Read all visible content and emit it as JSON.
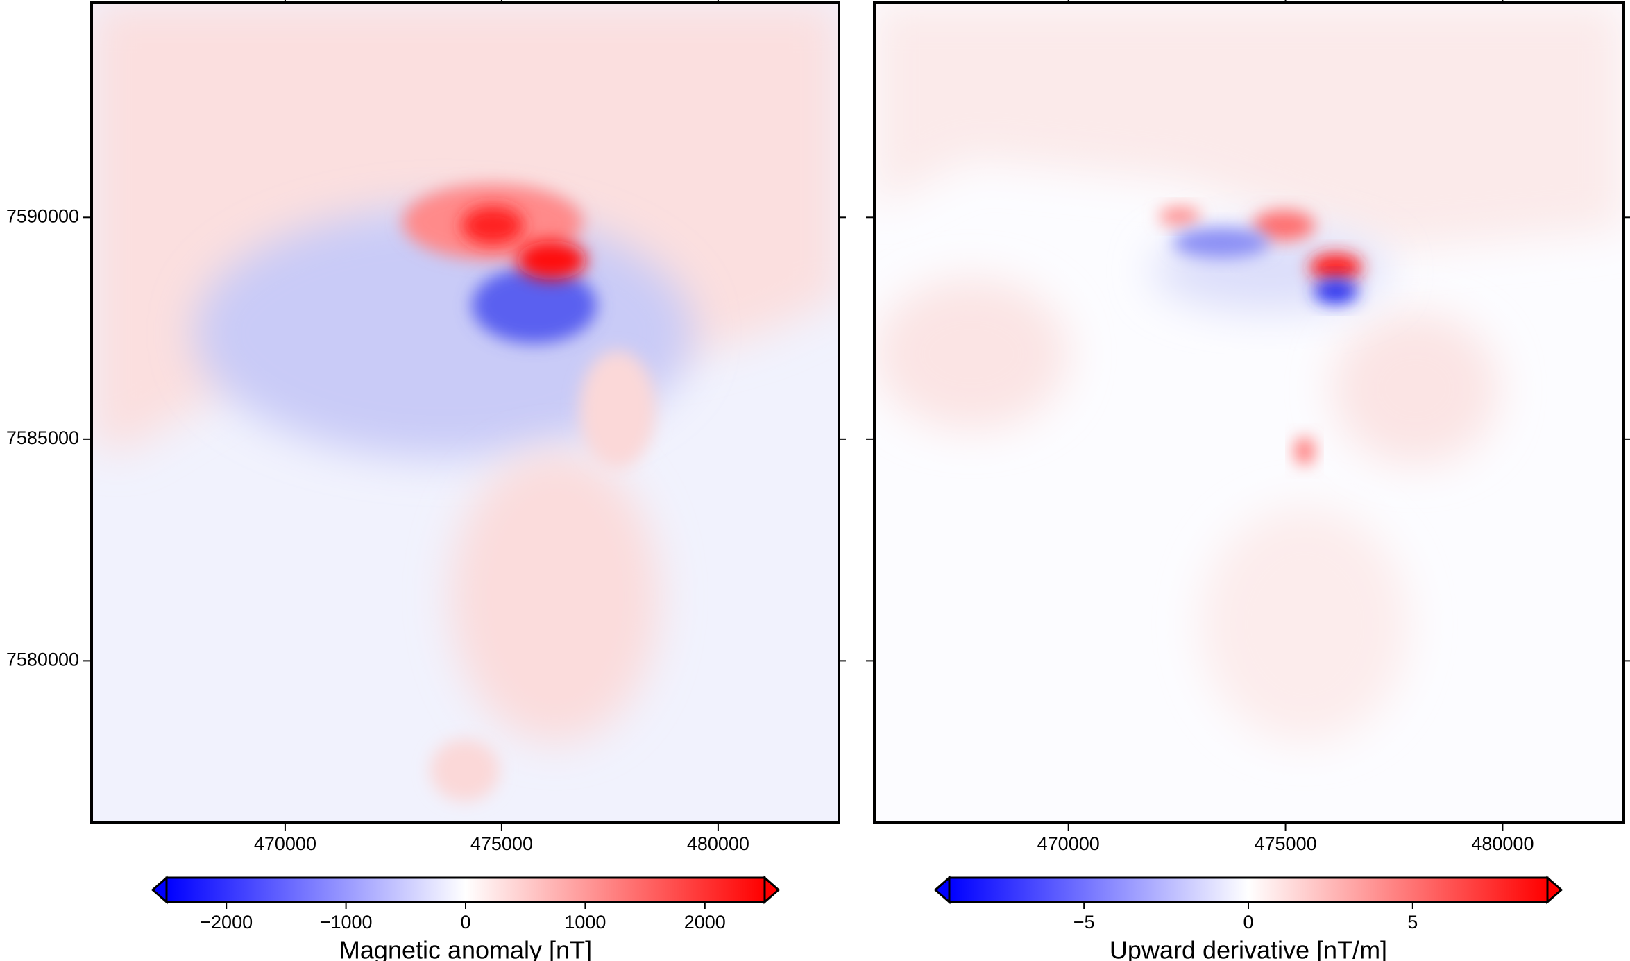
{
  "chart_data": [
    {
      "type": "heatmap",
      "xlim": [
        465530,
        482790
      ],
      "ylim": [
        7576360,
        7594840
      ],
      "xticks": [
        470000,
        475000,
        480000
      ],
      "yticks": [
        7580000,
        7585000,
        7590000
      ],
      "show_ytick_labels": true,
      "colorbar": {
        "label": "Magnetic anomaly [nT]",
        "lim": [
          -2500,
          2500
        ],
        "ticks": [
          {
            "value": -2000,
            "label": "−2000"
          },
          {
            "value": -1000,
            "label": "−1000"
          },
          0,
          1000,
          2000
        ],
        "colors": [
          "#0000ff",
          "#ffffff",
          "#ff0000"
        ]
      }
    },
    {
      "type": "heatmap",
      "xlim": [
        465530,
        482790
      ],
      "ylim": [
        7576360,
        7594840
      ],
      "xticks": [
        470000,
        475000,
        480000
      ],
      "yticks": [
        7580000,
        7585000,
        7590000
      ],
      "show_ytick_labels": false,
      "colorbar": {
        "label": "Upward derivative [nT/m]",
        "lim": [
          -9.1,
          9.1
        ],
        "ticks": [
          {
            "value": -5,
            "label": "−5"
          },
          0,
          5
        ],
        "colors": [
          "#0000ff",
          "#ffffff",
          "#ff0000"
        ]
      }
    }
  ]
}
